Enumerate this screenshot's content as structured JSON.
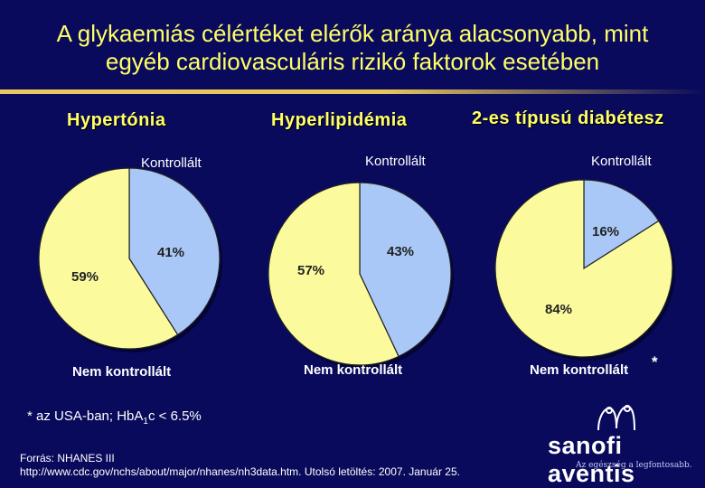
{
  "title_line1": "A glykaemiás célértéket elérők aránya alacsonyabb, mint",
  "title_line2": "egyéb cardiovasculáris rizikó faktorok esetében",
  "colors": {
    "controlled": "#a9c8f7",
    "uncontrolled": "#fbfb9e",
    "title": "#ffff66",
    "background": "#0a0a5c"
  },
  "chart_data": [
    {
      "type": "pie",
      "title": "Hypertónia",
      "slices": [
        {
          "label": "Kontrollált",
          "value": 41,
          "display": "41%"
        },
        {
          "label": "Nem kontrollált",
          "value": 59,
          "display": "59%"
        }
      ]
    },
    {
      "type": "pie",
      "title": "Hyperlipidémia",
      "slices": [
        {
          "label": "Kontrollált",
          "value": 43,
          "display": "43%"
        },
        {
          "label": "Nem kontrollált",
          "value": 57,
          "display": "57%"
        }
      ]
    },
    {
      "type": "pie",
      "title": "2-es típusú diabétesz",
      "slices": [
        {
          "label": "Kontrollált",
          "value": 16,
          "display": "16%"
        },
        {
          "label": "Nem kontrollált",
          "value": 84,
          "display": "84%"
        }
      ],
      "annotation": "*"
    }
  ],
  "footnote_prefix": "* az USA-ban; Hb",
  "footnote_hba": "A",
  "footnote_sub": "1",
  "footnote_suffix": "c < 6.5%",
  "source_line1": "Forrás: NHANES III",
  "source_line2": "http://www.cdc.gov/nchs/about/major/nhanes/nh3data.htm.  Utolsó letöltés: 2007. Január 25.",
  "logo_text": "sanofi aventis",
  "logo_tagline": "Az egészség a legfontosabb."
}
